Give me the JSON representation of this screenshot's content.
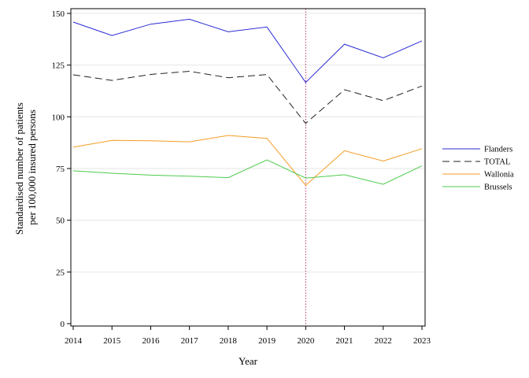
{
  "chart_data": {
    "type": "line",
    "title": "",
    "xlabel": "Year",
    "ylabel_lines": [
      "Standardised number of patients",
      "per 100,000 insured persons"
    ],
    "x": [
      2014,
      2015,
      2016,
      2017,
      2018,
      2019,
      2020,
      2021,
      2022,
      2023
    ],
    "x_ticks": [
      "2014",
      "2015",
      "2016",
      "2017",
      "2018",
      "2019",
      "2020",
      "2021",
      "2022",
      "2023"
    ],
    "ylim": [
      0,
      150
    ],
    "y_ticks": [
      0,
      25,
      50,
      75,
      100,
      125,
      150
    ],
    "y_tick_labels": [
      "0",
      "25",
      "50",
      "75",
      "100",
      "125",
      "150"
    ],
    "grid": "horizontal",
    "reference_line": {
      "x": 2020,
      "style": "dotted",
      "color": "#b03060"
    },
    "legend_position": "right",
    "series": [
      {
        "name": "Flanders",
        "color": "#2b2bd4",
        "dash": "solid",
        "values": [
          145.8,
          139.3,
          144.8,
          147.2,
          141.1,
          143.4,
          116.6,
          135.1,
          128.5,
          136.7
        ]
      },
      {
        "name": "TOTAL",
        "color": "#222222",
        "dash": "dashed",
        "values": [
          120.3,
          117.6,
          120.5,
          122.0,
          118.9,
          120.4,
          96.8,
          113.1,
          107.8,
          114.9
        ]
      },
      {
        "name": "Wallonia",
        "color": "#f39c24",
        "dash": "solid",
        "values": [
          85.3,
          88.6,
          88.4,
          87.9,
          91.0,
          89.6,
          66.9,
          83.6,
          78.6,
          84.6
        ]
      },
      {
        "name": "Brussels",
        "color": "#4ccb4c",
        "dash": "solid",
        "values": [
          73.9,
          72.7,
          71.8,
          71.3,
          70.6,
          79.2,
          70.4,
          72.0,
          67.4,
          76.3
        ]
      }
    ]
  }
}
